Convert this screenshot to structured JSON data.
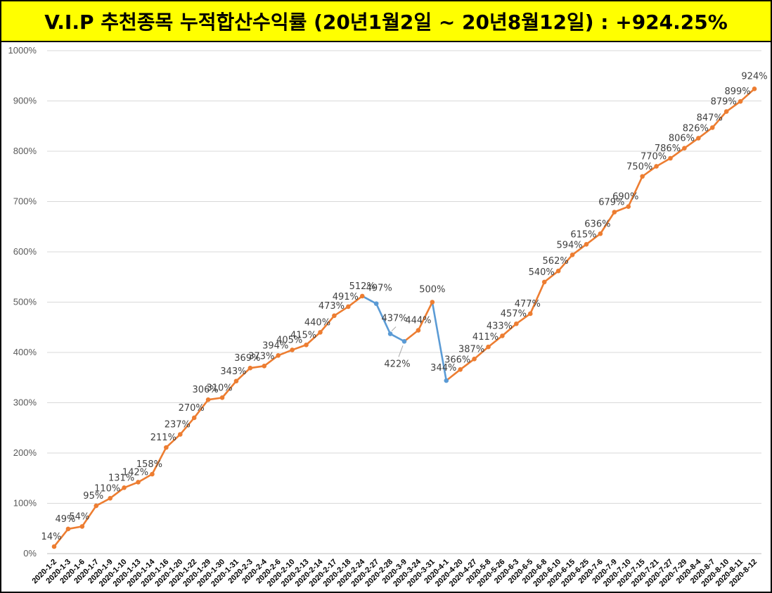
{
  "header": {
    "title": "V.I.P 추천종목 누적합산수익률 (20년1월2일 ~ 20년8월12일) : +924.25%"
  },
  "colors": {
    "up": "#ed7d31",
    "down": "#5b9bd5",
    "title_bg": "#ffff00"
  },
  "chart_data": {
    "type": "line",
    "title": "V.I.P 추천종목 누적합산수익률 (20년1월2일 ~ 20년8월12일) : +924.25%",
    "xlabel": "",
    "ylabel": "",
    "ylim": [
      0,
      1000
    ],
    "y_tick_values": [
      0,
      100,
      200,
      300,
      400,
      500,
      600,
      700,
      800,
      900,
      1000
    ],
    "y_tick_labels": [
      "0%",
      "100%",
      "200%",
      "300%",
      "400%",
      "500%",
      "600%",
      "700%",
      "800%",
      "900%",
      "1000%"
    ],
    "grid": true,
    "legend": "none",
    "categories": [
      "2020-1-2",
      "2020-1-3",
      "2020-1-6",
      "2020-1-7",
      "2020-1-9",
      "2020-1-10",
      "2020-1-13",
      "2020-1-14",
      "2020-1-16",
      "2020-1-20",
      "2020-1-22",
      "2020-1-29",
      "2020-1-30",
      "2020-1-31",
      "2020-2-3",
      "2020-2-4",
      "2020-2-6",
      "2020-2-10",
      "2020-2-13",
      "2020-2-14",
      "2020-2-17",
      "2020-2-18",
      "2020-2-24",
      "2020-2-27",
      "2020-2-28",
      "2020-3-9",
      "2020-3-24",
      "2020-3-31",
      "2020-4-1",
      "2020-4-20",
      "2020-4-27",
      "2020-5-8",
      "2020-5-26",
      "2020-6-3",
      "2020-6-5",
      "2020-6-8",
      "2020-6-10",
      "2020-6-15",
      "2020-6-25",
      "2020-7-6",
      "2020-7-9",
      "2020-7-10",
      "2020-7-15",
      "2020-7-21",
      "2020-7-27",
      "2020-7-29",
      "2020-8-4",
      "2020-8-7",
      "2020-8-10",
      "2020-8-11",
      "2020-8-12"
    ],
    "values": [
      14,
      49,
      54,
      95,
      110,
      131,
      142,
      158,
      211,
      237,
      270,
      306,
      310,
      343,
      369,
      373,
      394,
      405,
      415,
      440,
      473,
      491,
      512,
      497,
      437,
      422,
      444,
      500,
      344,
      366,
      387,
      411,
      433,
      457,
      477,
      540,
      562,
      594,
      615,
      636,
      679,
      690,
      750,
      770,
      786,
      806,
      826,
      847,
      879,
      899,
      924
    ],
    "data_labels": [
      "14%",
      "49%",
      "54%",
      "95%",
      "110%",
      "131%",
      "142%",
      "158%",
      "211%",
      "237%",
      "270%",
      "306%",
      "310%",
      "343%",
      "369%",
      "373%",
      "394%",
      "405%",
      "415%",
      "440%",
      "473%",
      "491%",
      "512%",
      "497%",
      "437%",
      "422%",
      "444%",
      "500%",
      "344%",
      "366%",
      "387%",
      "411%",
      "433%",
      "457%",
      "477%",
      "540%",
      "562%",
      "594%",
      "615%",
      "636%",
      "679%",
      "690%",
      "750%",
      "770%",
      "786%",
      "806%",
      "826%",
      "847%",
      "879%",
      "899%",
      "924%"
    ]
  }
}
